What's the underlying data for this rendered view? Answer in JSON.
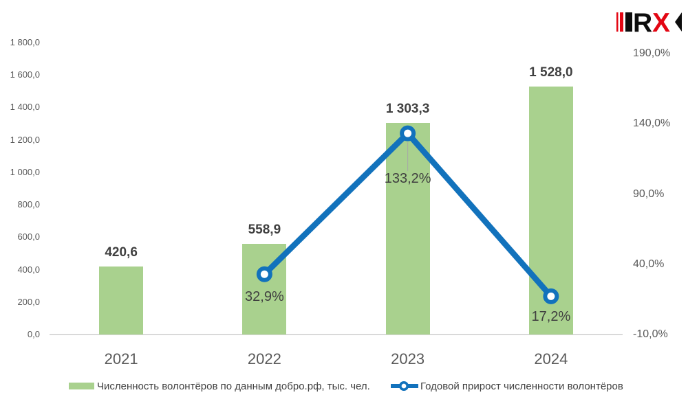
{
  "logo": {
    "letters": [
      {
        "ch": "R",
        "color": "#0d0d0d"
      },
      {
        "ch": "X",
        "color": "#e30613"
      }
    ],
    "bar_color": "#e30613",
    "black_bar_color": "#0d0d0d"
  },
  "chart_data": {
    "type": "combo-bar-line",
    "categories": [
      "2021",
      "2022",
      "2023",
      "2024"
    ],
    "series": [
      {
        "name": "Численность волонтёров по данным добро.рф, тыс. чел.",
        "type": "bar",
        "axis": "left",
        "color": "#a9d18e",
        "values": [
          420.6,
          558.9,
          1303.3,
          1528.0
        ],
        "labels": [
          "420,6",
          "558,9",
          "1 303,3",
          "1 528,0"
        ]
      },
      {
        "name": "Годовой прирост численности волонтёров",
        "type": "line",
        "axis": "right",
        "color": "#1272bc",
        "marker": "circle-white-fill",
        "values": [
          null,
          32.9,
          133.2,
          17.2
        ],
        "labels": [
          null,
          "32,9%",
          "133,2%",
          "17,2%"
        ]
      }
    ],
    "axes": {
      "left": {
        "min": 0,
        "max": 1800,
        "step": 200,
        "tick_labels": [
          "0,0",
          "200,0",
          "400,0",
          "600,0",
          "800,0",
          "1 000,0",
          "1 200,0",
          "1 400,0",
          "1 600,0",
          "1 800,0"
        ]
      },
      "right": {
        "min": -10,
        "max": 190,
        "step": 50,
        "tick_labels": [
          "-10,0%",
          "40,0%",
          "90,0%",
          "140,0%",
          "190,0%"
        ]
      }
    },
    "grid": false,
    "legend_position": "bottom",
    "colors": {
      "axis_line": "#d9d9d9",
      "leader_line": "#a6a6a6",
      "tick_text": "#595959",
      "label_text": "#404040"
    }
  }
}
